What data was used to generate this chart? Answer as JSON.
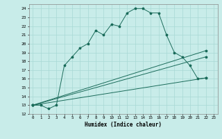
{
  "xlabel": "Humidex (Indice chaleur)",
  "bg_color": "#c8ece9",
  "grid_color": "#a8d8d4",
  "line_color": "#1a6b5a",
  "xlim": [
    -0.5,
    23.5
  ],
  "ylim": [
    12,
    24.5
  ],
  "yticks": [
    12,
    13,
    14,
    15,
    16,
    17,
    18,
    19,
    20,
    21,
    22,
    23,
    24
  ],
  "xticks": [
    0,
    1,
    2,
    3,
    4,
    5,
    6,
    7,
    8,
    9,
    10,
    11,
    12,
    13,
    14,
    15,
    16,
    17,
    18,
    19,
    20,
    21,
    22,
    23
  ],
  "series_main": {
    "x": [
      0,
      1,
      2,
      3,
      4,
      5,
      6,
      7,
      8,
      9,
      10,
      11,
      12,
      13,
      14,
      15,
      16,
      17,
      18,
      19,
      20,
      21,
      22
    ],
    "y": [
      13,
      13,
      12.6,
      13,
      17.5,
      18.5,
      19.5,
      20,
      21.5,
      21,
      22.2,
      22,
      23.5,
      24,
      24,
      23.5,
      23.5,
      21,
      19,
      18.5,
      17.5,
      16,
      16.1
    ]
  },
  "series_lines": [
    {
      "x": [
        0,
        22
      ],
      "y": [
        13,
        19.2
      ]
    },
    {
      "x": [
        0,
        22
      ],
      "y": [
        13,
        18.5
      ]
    },
    {
      "x": [
        0,
        22
      ],
      "y": [
        13,
        16.1
      ]
    }
  ]
}
